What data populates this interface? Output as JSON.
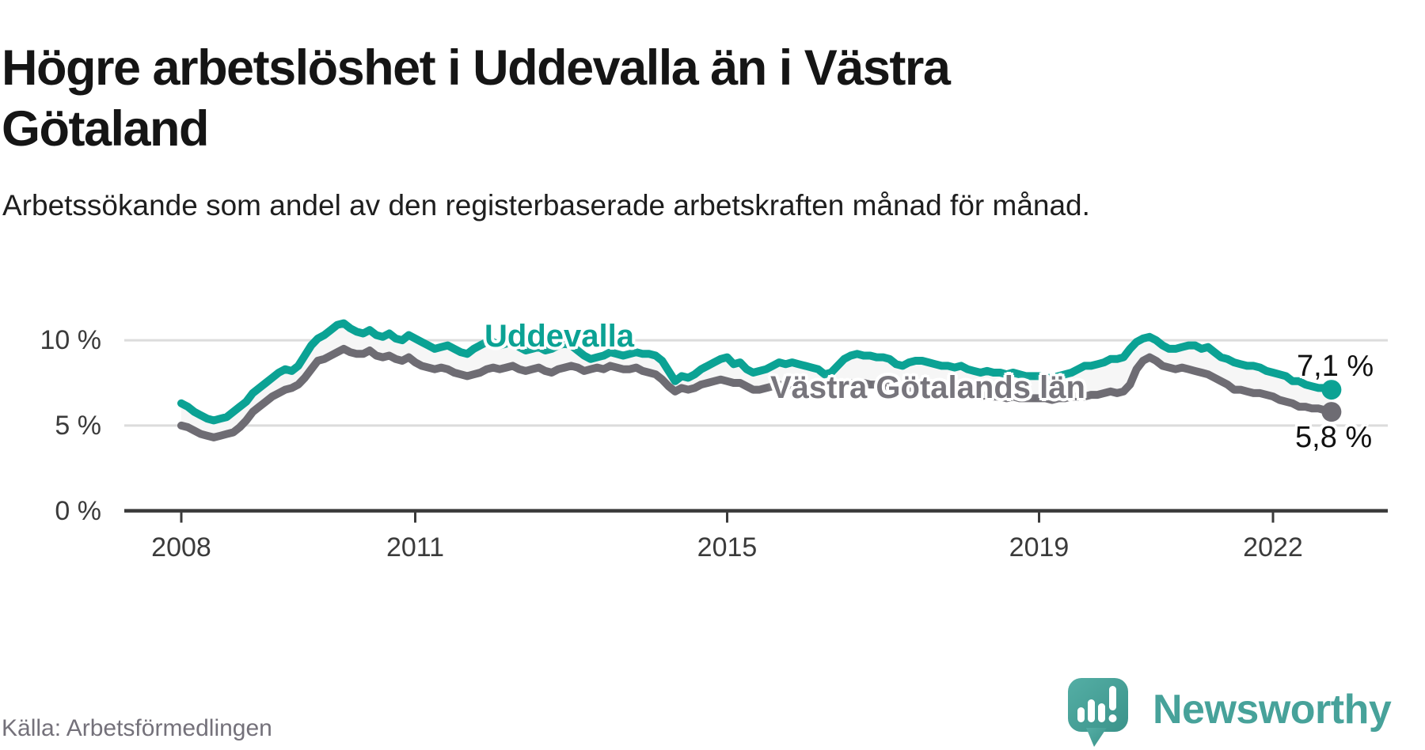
{
  "header": {
    "title": "Högre arbetslöshet i Uddevalla än i Västra Götaland",
    "title_lines": [
      "Högre arbetslöshet i Uddevalla än i Västra",
      "Götaland"
    ],
    "subtitle": "Arbetssökande som andel av den registerbaserade arbetskraften månad för månad."
  },
  "footer": {
    "source": "Källa: Arbetsförmedlingen",
    "brand": "Newsworthy",
    "logo_icon": "bar-chart-speech-bubble"
  },
  "colors": {
    "uddevalla": "#0ba294",
    "region": "#6e6c73",
    "grid": "#dcdcdc",
    "axis": "#3a3a3a",
    "fill_between": "#f6f6f6",
    "tick_text": "#3b3b3b",
    "brand_teal": "#47a29a"
  },
  "chart_data": {
    "type": "line",
    "unit": "%",
    "frequency": "monthly",
    "x_start": "2008-01",
    "x_end": "2022-10",
    "x_tick_years": [
      2008,
      2011,
      2015,
      2019,
      2022
    ],
    "y_ticks": [
      {
        "value": 0,
        "label": "0 %"
      },
      {
        "value": 5,
        "label": "5 %"
      },
      {
        "value": 10,
        "label": "10 %"
      }
    ],
    "ylim": [
      0,
      12
    ],
    "grid": true,
    "legend_position": "inline-labels",
    "series": [
      {
        "name": "Uddevalla",
        "color": "#0ba294",
        "end_label": "7,1 %",
        "end_value": 7.1,
        "values": [
          6.3,
          6.1,
          5.8,
          5.6,
          5.4,
          5.3,
          5.4,
          5.5,
          5.8,
          6.1,
          6.4,
          6.9,
          7.2,
          7.5,
          7.8,
          8.1,
          8.3,
          8.2,
          8.5,
          9.1,
          9.7,
          10.1,
          10.3,
          10.6,
          10.9,
          11.0,
          10.7,
          10.5,
          10.4,
          10.6,
          10.3,
          10.2,
          10.4,
          10.1,
          10.0,
          10.3,
          10.1,
          9.9,
          9.7,
          9.5,
          9.6,
          9.7,
          9.5,
          9.3,
          9.2,
          9.5,
          9.7,
          9.9,
          9.9,
          9.7,
          9.8,
          9.9,
          9.6,
          9.4,
          9.5,
          9.6,
          9.4,
          9.5,
          9.7,
          9.8,
          9.7,
          9.4,
          9.1,
          8.9,
          9.0,
          9.1,
          9.3,
          9.2,
          9.1,
          9.2,
          9.3,
          9.2,
          9.2,
          9.1,
          8.8,
          8.2,
          7.6,
          7.9,
          7.8,
          8.0,
          8.3,
          8.5,
          8.7,
          8.9,
          9.0,
          8.6,
          8.7,
          8.3,
          8.1,
          8.2,
          8.3,
          8.5,
          8.7,
          8.6,
          8.7,
          8.6,
          8.5,
          8.4,
          8.3,
          8.0,
          8.1,
          8.5,
          8.9,
          9.1,
          9.2,
          9.1,
          9.1,
          9.0,
          9.0,
          8.9,
          8.6,
          8.5,
          8.7,
          8.8,
          8.8,
          8.7,
          8.6,
          8.5,
          8.5,
          8.4,
          8.5,
          8.3,
          8.2,
          8.1,
          8.2,
          8.1,
          8.1,
          8.0,
          8.1,
          8.0,
          7.9,
          7.9,
          7.9,
          7.8,
          7.8,
          7.9,
          8.0,
          8.1,
          8.3,
          8.5,
          8.5,
          8.6,
          8.7,
          8.9,
          8.9,
          9.0,
          9.5,
          9.9,
          10.1,
          10.2,
          10.0,
          9.7,
          9.5,
          9.5,
          9.6,
          9.7,
          9.7,
          9.5,
          9.6,
          9.3,
          9.0,
          8.9,
          8.7,
          8.6,
          8.5,
          8.5,
          8.4,
          8.2,
          8.1,
          8.0,
          7.9,
          7.6,
          7.6,
          7.4,
          7.3,
          7.2,
          7.2,
          7.1
        ]
      },
      {
        "name": "Västra Götalands län",
        "color": "#6e6c73",
        "end_label": "5,8 %",
        "end_value": 5.8,
        "values": [
          5.0,
          4.9,
          4.7,
          4.5,
          4.4,
          4.3,
          4.4,
          4.5,
          4.6,
          4.9,
          5.3,
          5.8,
          6.1,
          6.4,
          6.7,
          6.9,
          7.1,
          7.2,
          7.4,
          7.8,
          8.3,
          8.8,
          8.9,
          9.1,
          9.3,
          9.5,
          9.3,
          9.2,
          9.2,
          9.4,
          9.1,
          9.0,
          9.1,
          8.9,
          8.8,
          9.0,
          8.7,
          8.5,
          8.4,
          8.3,
          8.4,
          8.3,
          8.1,
          8.0,
          7.9,
          8.0,
          8.1,
          8.3,
          8.4,
          8.3,
          8.4,
          8.5,
          8.3,
          8.2,
          8.3,
          8.4,
          8.2,
          8.1,
          8.3,
          8.4,
          8.5,
          8.4,
          8.2,
          8.3,
          8.4,
          8.3,
          8.5,
          8.4,
          8.3,
          8.3,
          8.4,
          8.2,
          8.1,
          8.0,
          7.7,
          7.3,
          7.0,
          7.2,
          7.1,
          7.2,
          7.4,
          7.5,
          7.6,
          7.7,
          7.6,
          7.5,
          7.5,
          7.3,
          7.1,
          7.1,
          7.2,
          7.3,
          7.4,
          7.3,
          7.4,
          7.3,
          7.3,
          7.2,
          7.2,
          7.0,
          7.1,
          7.2,
          7.4,
          7.5,
          7.5,
          7.5,
          7.4,
          7.4,
          7.3,
          7.3,
          7.2,
          7.1,
          7.2,
          7.2,
          7.2,
          7.1,
          7.1,
          7.0,
          7.0,
          6.9,
          6.9,
          6.9,
          6.8,
          6.7,
          6.8,
          6.7,
          6.7,
          6.6,
          6.7,
          6.6,
          6.6,
          6.6,
          6.6,
          6.6,
          6.5,
          6.6,
          6.6,
          6.7,
          6.7,
          6.7,
          6.8,
          6.8,
          6.9,
          7.0,
          6.9,
          7.0,
          7.4,
          8.3,
          8.8,
          9.0,
          8.8,
          8.5,
          8.4,
          8.3,
          8.4,
          8.3,
          8.2,
          8.1,
          8.0,
          7.8,
          7.6,
          7.4,
          7.1,
          7.1,
          7.0,
          6.9,
          6.9,
          6.8,
          6.7,
          6.5,
          6.4,
          6.3,
          6.1,
          6.1,
          6.0,
          6.0,
          5.9,
          5.8
        ]
      }
    ]
  }
}
